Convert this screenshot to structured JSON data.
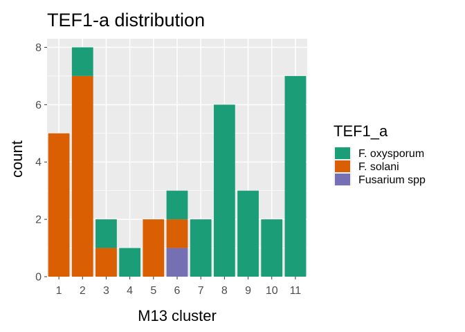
{
  "chart_data": {
    "type": "bar",
    "stacked": true,
    "title": "TEF1-a distribution",
    "xlabel": "M13 cluster",
    "ylabel": "count",
    "categories": [
      "1",
      "2",
      "3",
      "4",
      "5",
      "6",
      "7",
      "8",
      "9",
      "10",
      "11"
    ],
    "ylim": [
      0,
      8.3
    ],
    "yticks": [
      0,
      2,
      4,
      6,
      8
    ],
    "grid": true,
    "panel_background": "#ebebeb",
    "legend": {
      "title": "TEF1_a",
      "placement": "right"
    },
    "series": [
      {
        "name": "Fusarium spp",
        "color": "#7570b3",
        "values": [
          0,
          0,
          0,
          0,
          0,
          1,
          0,
          0,
          0,
          0,
          0
        ]
      },
      {
        "name": "F. solani",
        "color": "#d95f02",
        "values": [
          5,
          7,
          1,
          0,
          2,
          1,
          0,
          0,
          0,
          0,
          0
        ]
      },
      {
        "name": "F. oxysporum",
        "color": "#1b9e77",
        "values": [
          0,
          1,
          1,
          1,
          0,
          1,
          2,
          6,
          3,
          2,
          7
        ]
      }
    ],
    "legend_order": [
      "F. oxysporum",
      "F. solani",
      "Fusarium spp"
    ]
  }
}
